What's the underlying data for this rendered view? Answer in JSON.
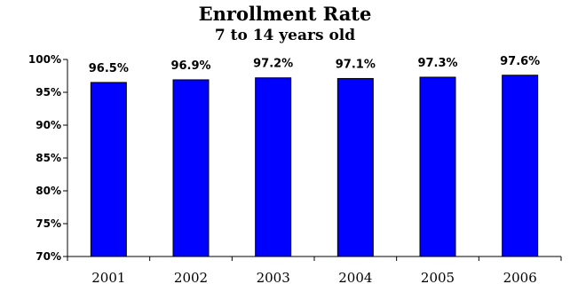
{
  "chart_data": {
    "type": "bar",
    "title": "Enrollment Rate",
    "subtitle": "7 to 14 years old",
    "categories": [
      "2001",
      "2002",
      "2003",
      "2004",
      "2005",
      "2006"
    ],
    "values": [
      96.5,
      96.9,
      97.2,
      97.1,
      97.3,
      97.6
    ],
    "data_labels": [
      "96.5%",
      "96.9%",
      "97.2%",
      "97.1%",
      "97.3%",
      "97.6%"
    ],
    "ylim": [
      70,
      100
    ],
    "yticks": [
      70,
      75,
      80,
      85,
      90,
      95,
      100
    ],
    "ytick_labels": [
      "70%",
      "75%",
      "80%",
      "85%",
      "90%",
      "95%",
      "100%"
    ],
    "xlabel": "",
    "ylabel": "",
    "grid": false,
    "legend": "none",
    "bar_color": "#0000FF",
    "bar_outline_color": "#000000"
  }
}
